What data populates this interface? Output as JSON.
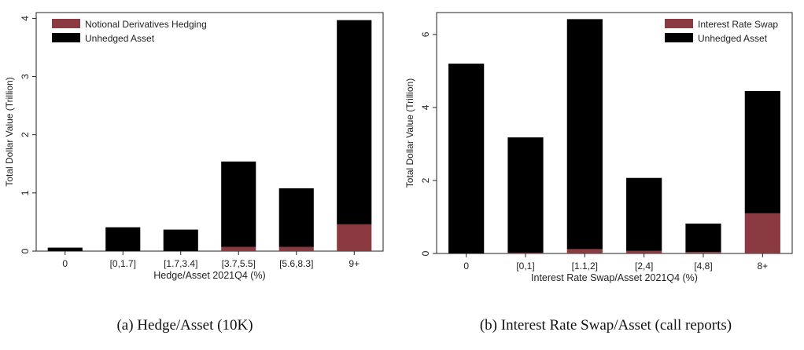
{
  "captions": {
    "a": "(a) Hedge/Asset (10K)",
    "b": "(b) Interest Rate Swap/Asset (call reports)"
  },
  "colors": {
    "hedged": "#8b3a41",
    "unhedged": "#000000"
  },
  "chart_data": [
    {
      "type": "bar",
      "stacked": true,
      "categories": [
        "0",
        "[0,1.7]",
        "[1.7,3.4]",
        "[3.7,5.5]",
        "[5.6,8.3]",
        "9+"
      ],
      "series": [
        {
          "name": "Notional Derivatives Hedging",
          "values": [
            0.0,
            0.0,
            0.0,
            0.07,
            0.07,
            0.46
          ]
        },
        {
          "name": "Unhedged Asset",
          "values": [
            0.06,
            0.41,
            0.37,
            1.47,
            1.01,
            3.51
          ]
        }
      ],
      "xlabel": "Hedge/Asset 2021Q4 (%)",
      "ylabel": "Total Dollar Value (Trillion)",
      "ylim": [
        0,
        4.1
      ],
      "yticks": [
        0,
        1,
        2,
        3,
        4
      ],
      "legend": "top-left",
      "grid": false
    },
    {
      "type": "bar",
      "stacked": true,
      "categories": [
        "0",
        "[0,1]",
        "[1.1,2]",
        "[2,4]",
        "[4,8]",
        "8+"
      ],
      "series": [
        {
          "name": "Interest Rate Swap",
          "values": [
            0.0,
            0.02,
            0.12,
            0.07,
            0.04,
            1.1
          ]
        },
        {
          "name": "Unhedged Asset",
          "values": [
            5.2,
            3.16,
            6.3,
            2.0,
            0.78,
            3.35
          ]
        }
      ],
      "xlabel": "Interest Rate Swap/Asset 2021Q4 (%)",
      "ylabel": "Total Dollar Value (Trillion)",
      "ylim": [
        0,
        6.6
      ],
      "yticks": [
        0,
        2,
        4,
        6
      ],
      "legend": "top-right",
      "grid": false
    }
  ]
}
